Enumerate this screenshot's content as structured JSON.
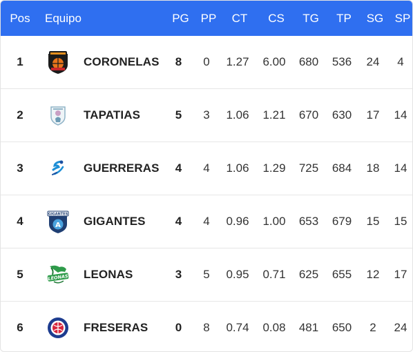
{
  "header": {
    "pos": "Pos",
    "team": "Equipo",
    "pg": "PG",
    "pp": "PP",
    "ct": "CT",
    "cs": "CS",
    "tg": "TG",
    "tp": "TP",
    "sg": "SG",
    "sp": "SP"
  },
  "colors": {
    "header_bg": "#2f6ff0",
    "header_text": "#ffffff",
    "row_border": "#e6e6e6"
  },
  "rows": [
    {
      "pos": "1",
      "team": "CORONELAS",
      "logo": "coronelas-logo-icon",
      "pg": "8",
      "pp": "0",
      "ct": "1.27",
      "cs": "6.00",
      "tg": "680",
      "tp": "536",
      "sg": "24",
      "sp": "4"
    },
    {
      "pos": "2",
      "team": "TAPATIAS",
      "logo": "tapatias-logo-icon",
      "pg": "5",
      "pp": "3",
      "ct": "1.06",
      "cs": "1.21",
      "tg": "670",
      "tp": "630",
      "sg": "17",
      "sp": "14"
    },
    {
      "pos": "3",
      "team": "GUERRERAS",
      "logo": "guerreras-logo-icon",
      "pg": "4",
      "pp": "4",
      "ct": "1.06",
      "cs": "1.29",
      "tg": "725",
      "tp": "684",
      "sg": "18",
      "sp": "14"
    },
    {
      "pos": "4",
      "team": "GIGANTES",
      "logo": "gigantes-logo-icon",
      "logo_text": "GIGANTES",
      "pg": "4",
      "pp": "4",
      "ct": "0.96",
      "cs": "1.00",
      "tg": "653",
      "tp": "679",
      "sg": "15",
      "sp": "15"
    },
    {
      "pos": "5",
      "team": "LEONAS",
      "logo": "leonas-logo-icon",
      "logo_text": "LEONAS",
      "pg": "3",
      "pp": "5",
      "ct": "0.95",
      "cs": "0.71",
      "tg": "625",
      "tp": "655",
      "sg": "12",
      "sp": "17"
    },
    {
      "pos": "6",
      "team": "FRESERAS",
      "logo": "freseras-logo-icon",
      "pg": "0",
      "pp": "8",
      "ct": "0.74",
      "cs": "0.08",
      "tg": "481",
      "tp": "650",
      "sg": "2",
      "sp": "24"
    }
  ]
}
